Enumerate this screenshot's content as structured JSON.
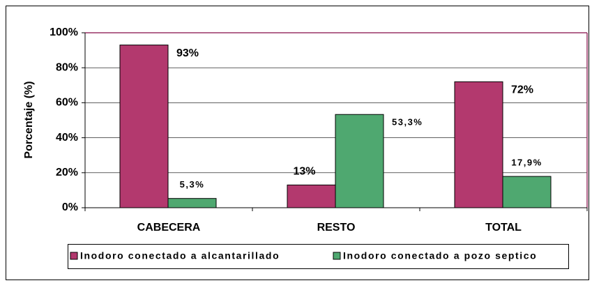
{
  "chart_data": {
    "type": "bar",
    "ylabel": "Porcentaje (%)",
    "categories": [
      "CABECERA",
      "RESTO",
      "TOTAL"
    ],
    "series": [
      {
        "name": "Inodoro conectado a alcantarillado",
        "color": "#b3396e",
        "values": [
          93,
          13,
          72
        ],
        "value_labels": [
          "93%",
          "13%",
          "72%"
        ]
      },
      {
        "name": "Inodoro conectado a pozo septico",
        "color": "#4fa870",
        "values": [
          5.3,
          53.3,
          17.9
        ],
        "value_labels": [
          "5,3%",
          "53,3%",
          "17,9%"
        ]
      }
    ],
    "ylim": [
      0,
      100
    ],
    "yticks": [
      {
        "value": 0,
        "label": "0%"
      },
      {
        "value": 20,
        "label": "20%"
      },
      {
        "value": 40,
        "label": "40%"
      },
      {
        "value": 60,
        "label": "60%"
      },
      {
        "value": 80,
        "label": "80%"
      },
      {
        "value": 100,
        "label": "100%"
      }
    ],
    "grid": true,
    "legend": "bottom"
  }
}
